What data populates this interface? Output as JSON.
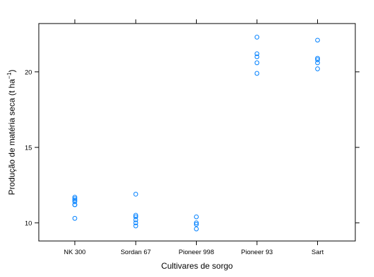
{
  "chart_data": {
    "type": "scatter",
    "title": "",
    "xlabel": "Cultivares de sorgo",
    "ylabel": {
      "main": "Produção de matéria seca (t ha",
      "superscript": "−1",
      "close": ")"
    },
    "categories": [
      "NK 300",
      "Sordan 67",
      "Pioneer 998",
      "Pioneer 93",
      "Sart"
    ],
    "ylim": [
      8.8,
      23.2
    ],
    "yticks": [
      10,
      15,
      20
    ],
    "grid": false,
    "legend": "none",
    "point_color": "#0080ff",
    "series": [
      {
        "values": [
          [
            11.7,
            11.6,
            11.5,
            11.4,
            11.2,
            11.2,
            10.3
          ],
          [
            11.9,
            10.5,
            10.4,
            10.2,
            10.0,
            9.8
          ],
          [
            10.4,
            10.0,
            9.9,
            9.6
          ],
          [
            22.3,
            21.2,
            21.0,
            20.6,
            19.9
          ],
          [
            22.1,
            20.9,
            20.8,
            20.6,
            20.2
          ]
        ]
      }
    ]
  }
}
